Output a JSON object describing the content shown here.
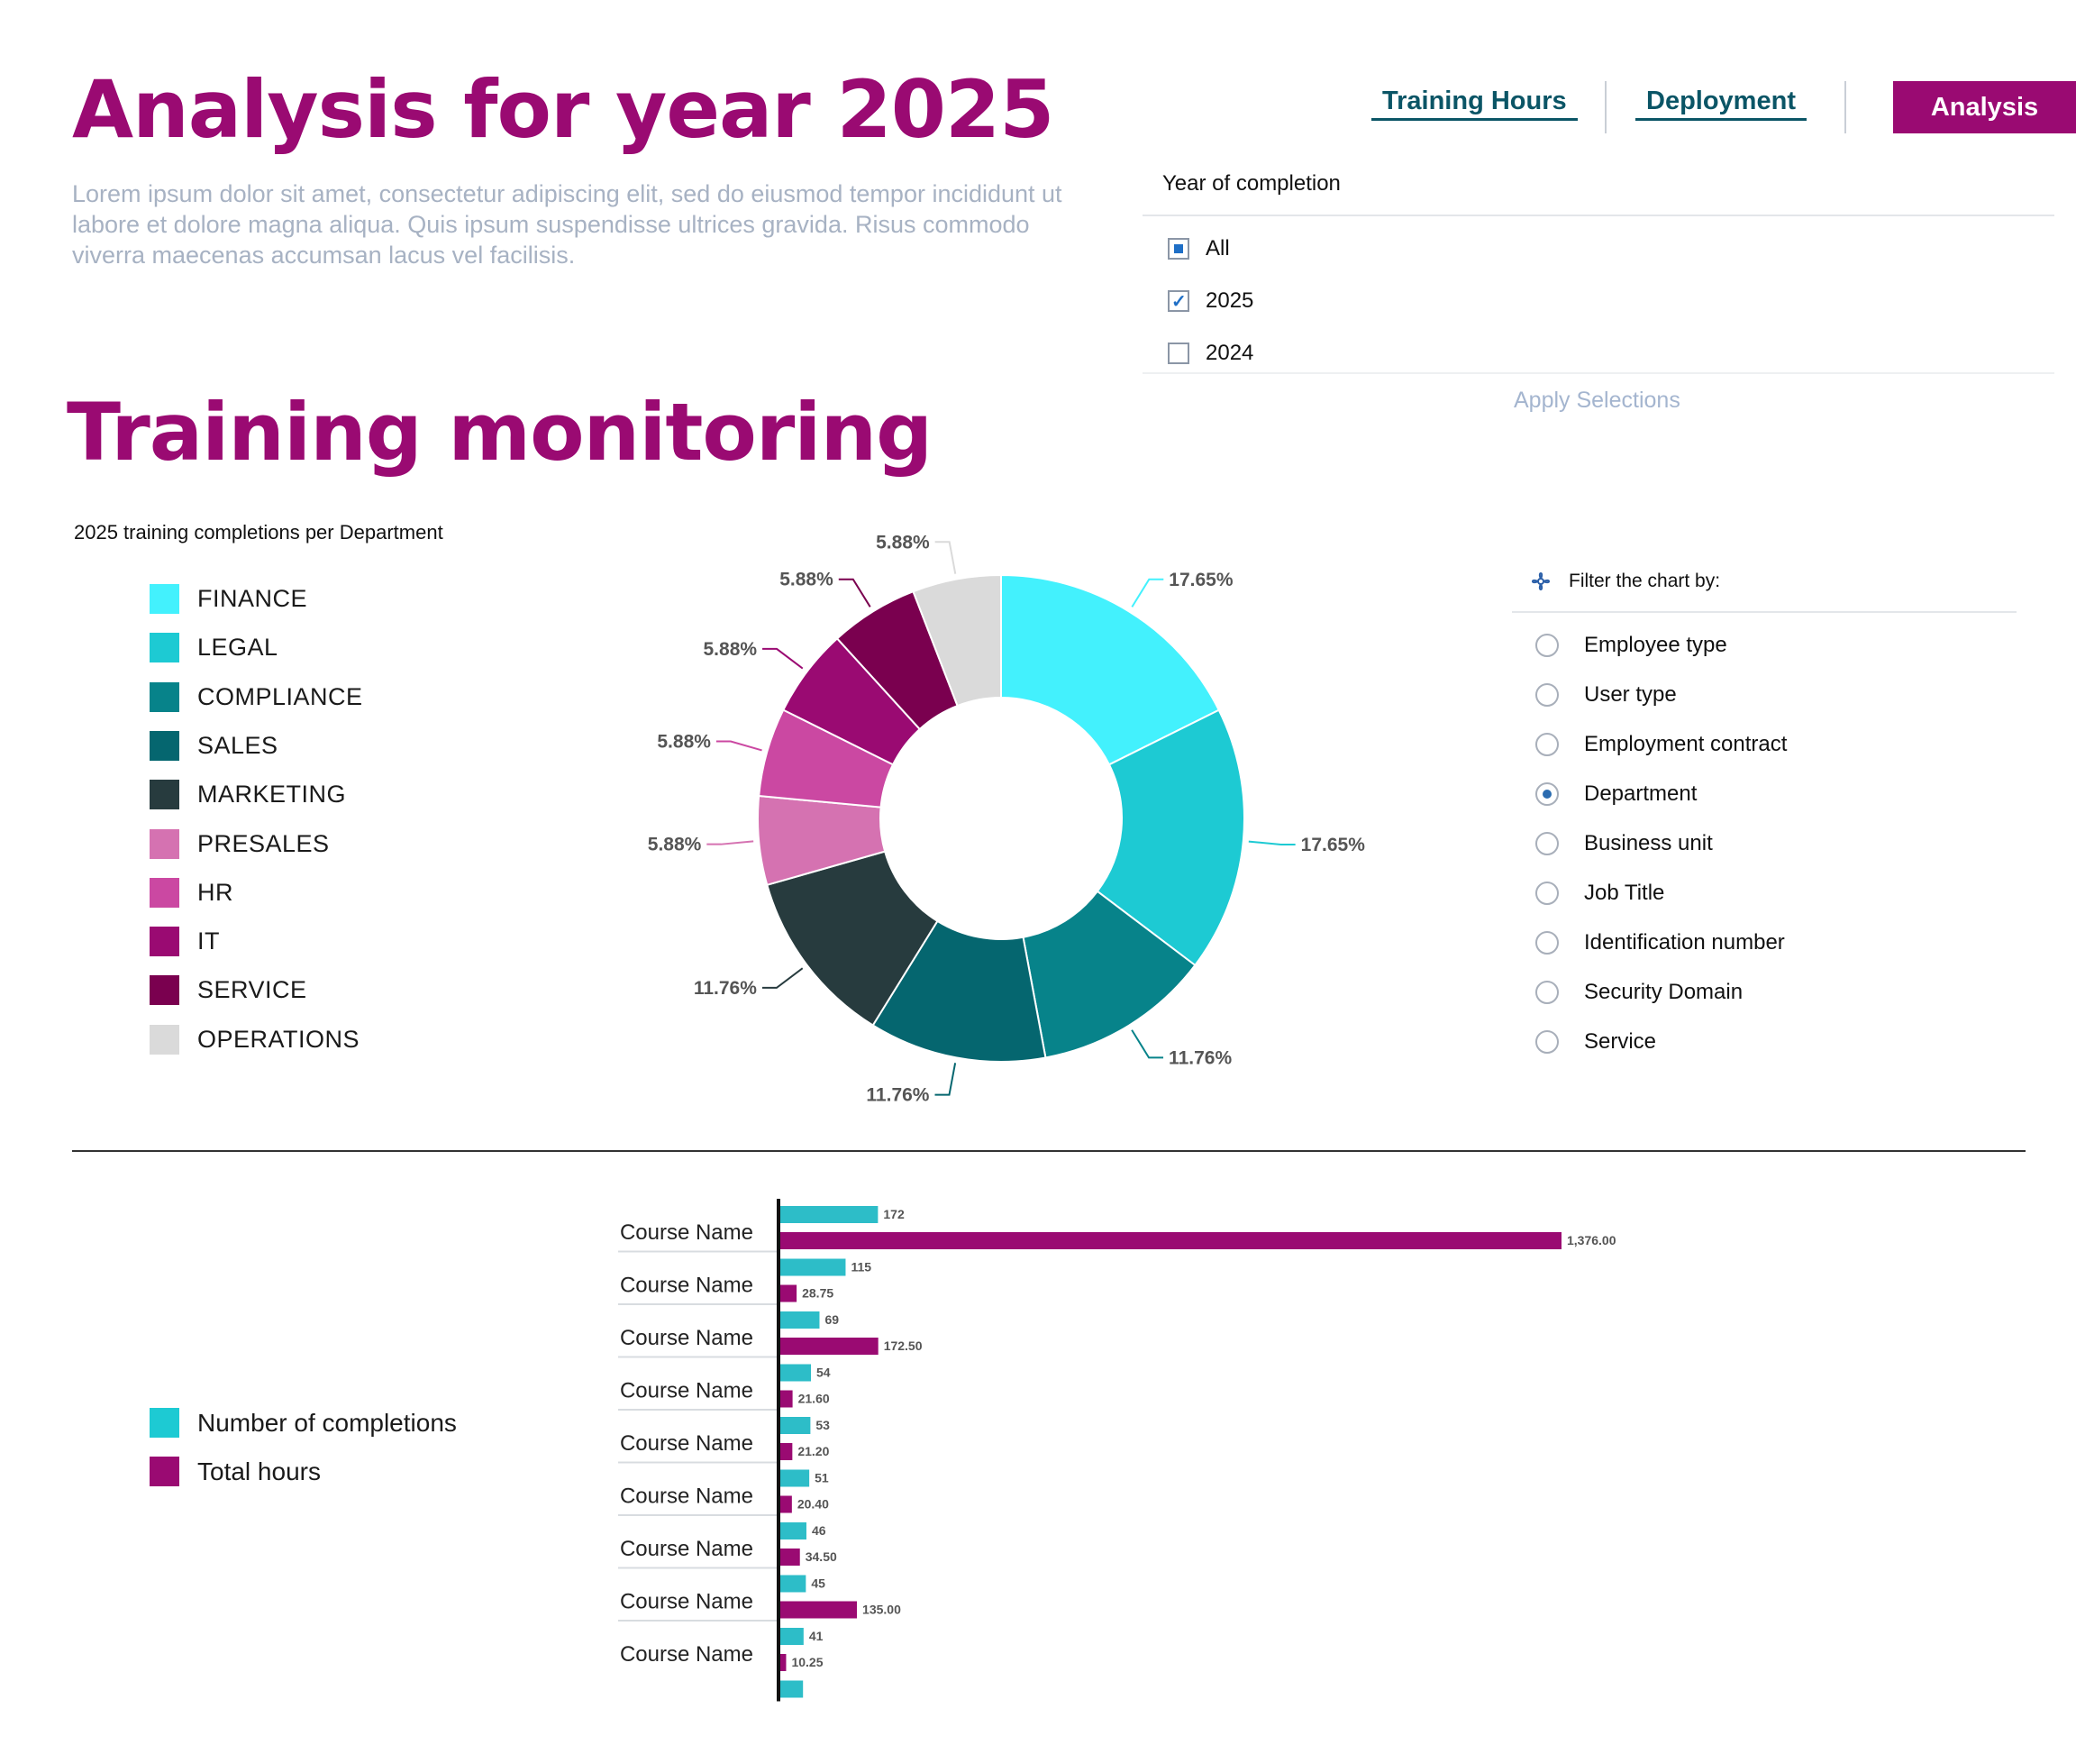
{
  "header": {
    "title": "Analysis for year 2025",
    "lorem": "Lorem ipsum dolor sit amet, consectetur adipiscing elit, sed do eiusmod tempor incididunt ut labore et dolore magna aliqua. Quis ipsum suspendisse ultrices gravida. Risus commodo viverra maecenas accumsan lacus vel facilisis."
  },
  "nav": {
    "training_hours": "Training Hours",
    "deployment": "Deployment",
    "analysis": "Analysis"
  },
  "year_filter": {
    "title": "Year of completion",
    "options": [
      {
        "label": "All",
        "state": "partial"
      },
      {
        "label": "2025",
        "state": "checked"
      },
      {
        "label": "2024",
        "state": "unchecked"
      }
    ],
    "apply": "Apply Selections"
  },
  "section_title": "Training monitoring",
  "filter_panel": {
    "title": "Filter the chart by:",
    "icon": "filter-icon",
    "options": [
      "Employee type",
      "User type",
      "Employment contract",
      "Department",
      "Business unit",
      "Job Title",
      "Identification number",
      "Security Domain",
      "Service"
    ],
    "selected": "Department"
  },
  "bar_legend": [
    {
      "label": "Number of completions",
      "color": "#1dcad3"
    },
    {
      "label": "Total hours",
      "color": "#9a0a72"
    }
  ],
  "chart_data": [
    {
      "type": "pie",
      "title": "2025 training completions per Department",
      "donut": true,
      "categories": [
        "FINANCE",
        "LEGAL",
        "COMPLIANCE",
        "SALES",
        "MARKETING",
        "PRESALES",
        "HR",
        "IT",
        "SERVICE",
        "OPERATIONS"
      ],
      "values": [
        17.65,
        17.65,
        11.76,
        11.76,
        11.76,
        5.88,
        5.88,
        5.88,
        5.88,
        5.88
      ],
      "labels": [
        "17.65%",
        "17.65%",
        "11.76%",
        "11.76%",
        "11.76%",
        "5.88%",
        "5.88%",
        "5.88%",
        "5.88%",
        "5.88%"
      ],
      "colors": [
        "#43f1fd",
        "#1dcad3",
        "#07838a",
        "#05666f",
        "#273b3e",
        "#d572b1",
        "#cb48a2",
        "#9a0a72",
        "#7a004f",
        "#dadada"
      ],
      "legend_position": "left"
    },
    {
      "type": "bar",
      "orientation": "horizontal",
      "categories": [
        "Course Name",
        "Course Name",
        "Course Name",
        "Course Name",
        "Course Name",
        "Course Name",
        "Course Name",
        "Course Name",
        "Course Name"
      ],
      "series": [
        {
          "name": "Number of completions",
          "values": [
            172,
            115,
            69,
            54,
            53,
            51,
            46,
            45,
            41
          ],
          "labels": [
            "172",
            "115",
            "69",
            "54",
            "53",
            "51",
            "46",
            "45",
            "41"
          ],
          "color": "#2dbdc8"
        },
        {
          "name": "Total hours",
          "values": [
            1376.0,
            28.75,
            172.5,
            21.6,
            21.2,
            20.4,
            34.5,
            135.0,
            10.25
          ],
          "labels": [
            "1,376.00",
            "28.75",
            "172.50",
            "21.60",
            "21.20",
            "20.40",
            "34.50",
            "135.00",
            "10.25"
          ],
          "color": "#9a0a72"
        }
      ],
      "partial_next_value": 40,
      "legend_position": "left"
    }
  ]
}
